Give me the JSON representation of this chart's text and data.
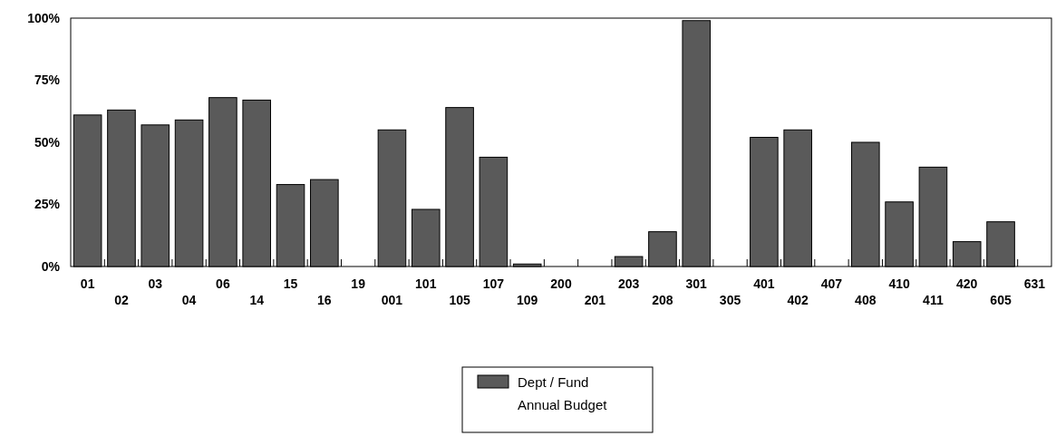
{
  "chart_data": {
    "type": "bar",
    "categories": [
      "01",
      "02",
      "03",
      "04",
      "06",
      "14",
      "15",
      "16",
      "19",
      "001",
      "101",
      "105",
      "107",
      "109",
      "200",
      "201",
      "203",
      "208",
      "301",
      "305",
      "401",
      "402",
      "407",
      "408",
      "410",
      "411",
      "420",
      "605",
      "631"
    ],
    "series": [
      {
        "name": "Dept / Fund Annual Budget",
        "color": "#5a5a5a",
        "values": [
          61,
          63,
          57,
          59,
          68,
          67,
          33,
          35,
          0,
          55,
          23,
          64,
          44,
          1,
          0,
          0,
          4,
          14,
          99,
          0,
          52,
          55,
          0,
          50,
          26,
          40,
          10,
          18,
          0
        ]
      }
    ],
    "ylim": [
      0,
      100
    ],
    "yticks": [
      {
        "value": 0,
        "label": "0%"
      },
      {
        "value": 25,
        "label": "25%"
      },
      {
        "value": 50,
        "label": "50%"
      },
      {
        "value": 75,
        "label": "75%"
      },
      {
        "value": 100,
        "label": "100%"
      }
    ],
    "grid": false,
    "legend": "bottom"
  }
}
